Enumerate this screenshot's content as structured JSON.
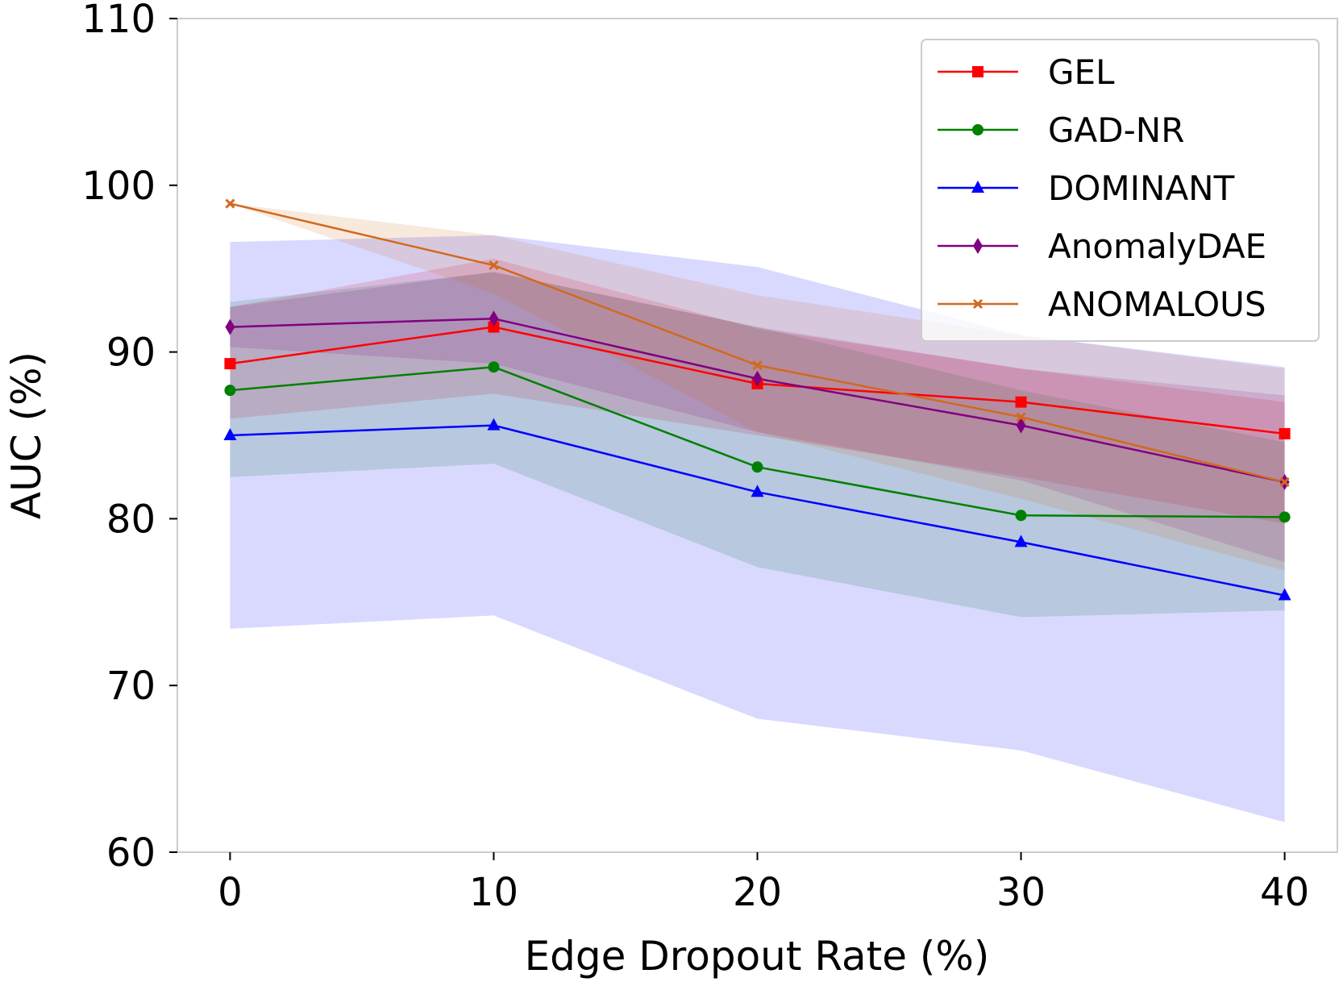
{
  "chart_data": {
    "type": "line",
    "title": "",
    "xlabel": "Edge Dropout Rate (%)",
    "ylabel": "AUC (%)",
    "x": [
      0,
      10,
      20,
      30,
      40
    ],
    "xticks": [
      0,
      10,
      20,
      30,
      40
    ],
    "yticks": [
      60,
      70,
      80,
      90,
      100,
      110
    ],
    "xlim": [
      -2,
      42
    ],
    "ylim": [
      60,
      110
    ],
    "grid": false,
    "legend_position": "top-right",
    "series": [
      {
        "name": "GEL",
        "color": "#ff0000",
        "marker": "square",
        "values": [
          89.3,
          91.5,
          88.1,
          87.0,
          85.1
        ],
        "lower": [
          86.0,
          87.5,
          85.0,
          82.5,
          79.7
        ],
        "upper": [
          92.7,
          95.6,
          91.4,
          89.0,
          87.0
        ]
      },
      {
        "name": "GAD-NR",
        "color": "#008000",
        "marker": "circle",
        "values": [
          87.7,
          89.1,
          83.1,
          80.2,
          80.1
        ],
        "lower": [
          82.5,
          83.3,
          77.1,
          74.1,
          74.5
        ],
        "upper": [
          93.0,
          94.8,
          91.5,
          87.7,
          84.6
        ]
      },
      {
        "name": "DOMINANT",
        "color": "#0000ff",
        "marker": "triangle",
        "values": [
          85.0,
          85.6,
          81.6,
          78.6,
          75.4
        ],
        "lower": [
          73.4,
          74.2,
          68.0,
          66.1,
          61.8
        ],
        "upper": [
          96.6,
          97.0,
          95.1,
          91.0,
          89.1
        ]
      },
      {
        "name": "AnomalyDAE",
        "color": "#800080",
        "marker": "diamond",
        "values": [
          91.5,
          92.0,
          88.4,
          85.6,
          82.2
        ],
        "lower": [
          90.3,
          89.3,
          85.2,
          82.3,
          77.4
        ],
        "upper": [
          92.7,
          94.8,
          91.5,
          89.0,
          87.4
        ]
      },
      {
        "name": "ANOMALOUS",
        "color": "#d2691e",
        "marker": "x",
        "values": [
          98.9,
          95.2,
          89.2,
          86.1,
          82.2
        ],
        "lower": [
          98.9,
          93.5,
          85.2,
          81.2,
          76.9
        ],
        "upper": [
          98.9,
          97.0,
          93.4,
          91.0,
          89.0
        ]
      }
    ]
  }
}
